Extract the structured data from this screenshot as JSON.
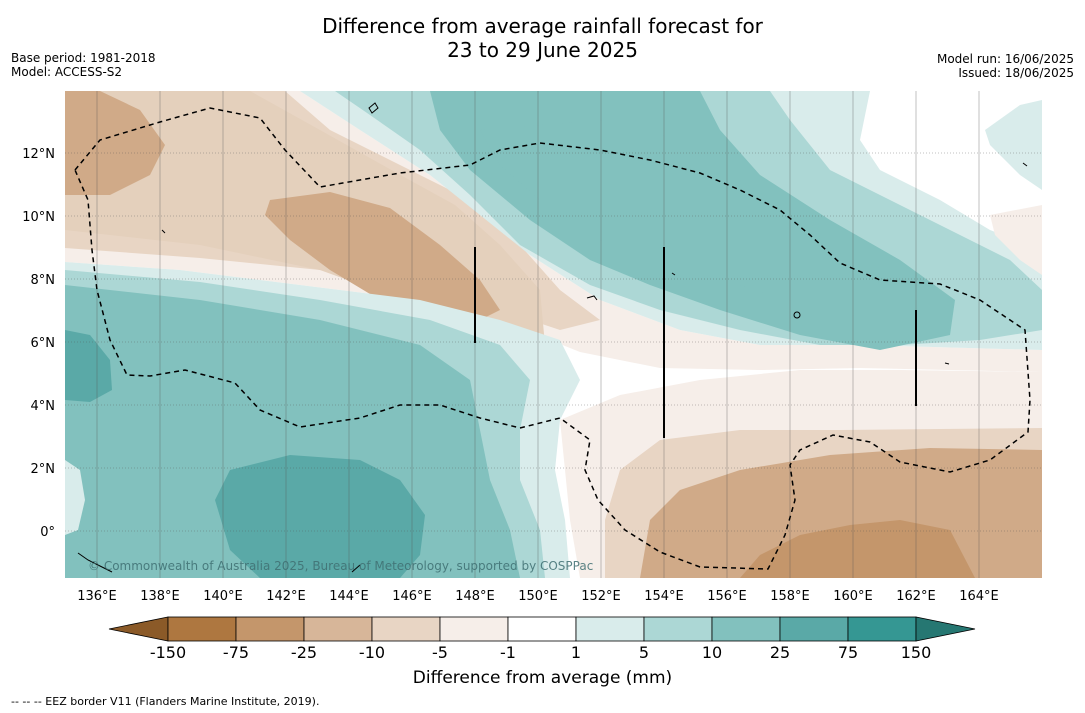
{
  "title_line1": "Difference from average rainfall forecast for",
  "title_line2": "23 to 29 June 2025",
  "meta_left": {
    "base_period": "Base period: 1981-2018",
    "model": "Model: ACCESS-S2"
  },
  "meta_right": {
    "model_run": "Model run: 16/06/2025",
    "issued": "Issued: 18/06/2025"
  },
  "lon_labels": [
    "136°E",
    "138°E",
    "140°E",
    "142°E",
    "144°E",
    "146°E",
    "148°E",
    "150°E",
    "152°E",
    "154°E",
    "156°E",
    "158°E",
    "160°E",
    "162°E",
    "164°E"
  ],
  "lat_labels": [
    "12°N",
    "10°N",
    "8°N",
    "6°N",
    "4°N",
    "2°N",
    "0°"
  ],
  "copyright": "© Commonwealth of Australia 2025, Bureau of Meteorology, supported by COSPPac",
  "colorbar": {
    "title": "Difference from average (mm)",
    "ticks": [
      "-150",
      "-75",
      "-25",
      "-10",
      "-5",
      "-1",
      "1",
      "5",
      "10",
      "25",
      "75",
      "150"
    ],
    "colors": [
      "#8b5a28",
      "#ae7740",
      "#c4966b",
      "#d7b699",
      "#e8d5c4",
      "#f6eee9",
      "#ffffff",
      "#d9eceb",
      "#acd7d5",
      "#82c1be",
      "#5aa9a7",
      "#359793",
      "#267772"
    ]
  },
  "footnote": "--  --  -- EEZ border V11 (Flanders Marine Institute, 2019)."
}
